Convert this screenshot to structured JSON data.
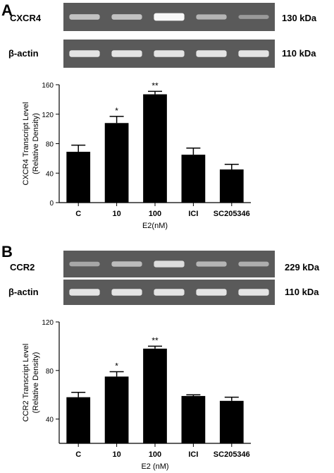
{
  "panels": [
    {
      "letter": "A",
      "blots": [
        {
          "protein": "CXCR4",
          "size": "130 kDa",
          "band_intensity": [
            0.55,
            0.55,
            0.95,
            0.45,
            0.25
          ]
        },
        {
          "protein": "β-actin",
          "size": "110 kDa",
          "band_intensity": [
            0.8,
            0.8,
            0.8,
            0.8,
            0.8
          ]
        }
      ]
    },
    {
      "letter": "B",
      "blots": [
        {
          "protein": "CCR2",
          "size": "229 kDa",
          "band_intensity": [
            0.35,
            0.5,
            0.75,
            0.45,
            0.4
          ]
        },
        {
          "protein": "β-actin",
          "size": "110 kDa",
          "band_intensity": [
            0.8,
            0.8,
            0.8,
            0.8,
            0.8
          ]
        }
      ]
    }
  ],
  "chart_data": [
    {
      "type": "bar",
      "categories": [
        "C",
        "10",
        "100",
        "ICI",
        "SC205346"
      ],
      "values": [
        69,
        108,
        147,
        65,
        45
      ],
      "errors": [
        9,
        9,
        4,
        9,
        7
      ],
      "significance": [
        "",
        "*",
        "**",
        "",
        ""
      ],
      "ylabel": [
        "CXCR4 Transcript Level",
        "(Relative Density)"
      ],
      "xlabel": "E2(nM)",
      "ylim": [
        0,
        160
      ],
      "yticks": [
        "0",
        "40",
        "80",
        "120",
        "160"
      ],
      "bar_color": "#000000"
    },
    {
      "type": "bar",
      "categories": [
        "C",
        "10",
        "100",
        "ICI",
        "SC205346"
      ],
      "values": [
        58,
        75,
        98,
        59,
        55
      ],
      "errors": [
        4,
        4,
        2,
        1,
        3
      ],
      "significance": [
        "",
        "*",
        "**",
        "",
        ""
      ],
      "ylabel": [
        "CCR2 Transcript Level",
        "(Relative Density)"
      ],
      "xlabel": "E2 (nM)",
      "ylim": [
        20,
        120
      ],
      "yticks": [
        "40",
        "80",
        "120"
      ],
      "bar_color": "#000000"
    }
  ]
}
